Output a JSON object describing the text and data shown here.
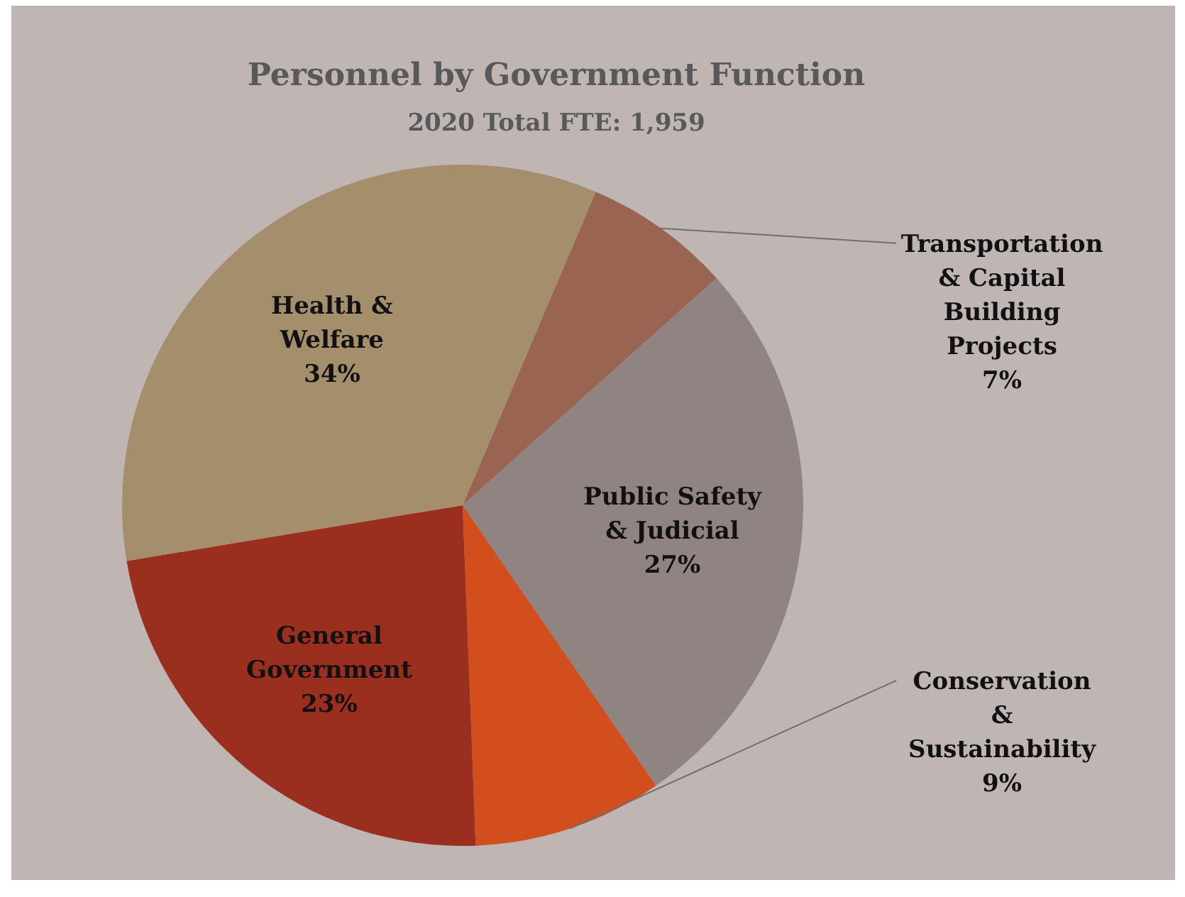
{
  "chart_data": {
    "type": "pie",
    "title": "Personnel by Government Function",
    "subtitle": "2020 Total FTE: 1,959",
    "categories": [
      "Transportation\n& Capital\nBuilding\nProjects",
      "Public Safety\n& Judicial",
      "Conservation\n&\nSustainability",
      "General\nGovernment",
      "Health &\nWelfare"
    ],
    "values": [
      7,
      27,
      9,
      23,
      34
    ],
    "value_labels": [
      "7%",
      "27%",
      "9%",
      "23%",
      "34%"
    ],
    "colors": [
      "#9a6453",
      "#8f8482",
      "#d24e1c",
      "#9a2f20",
      "#a58e6c"
    ]
  }
}
